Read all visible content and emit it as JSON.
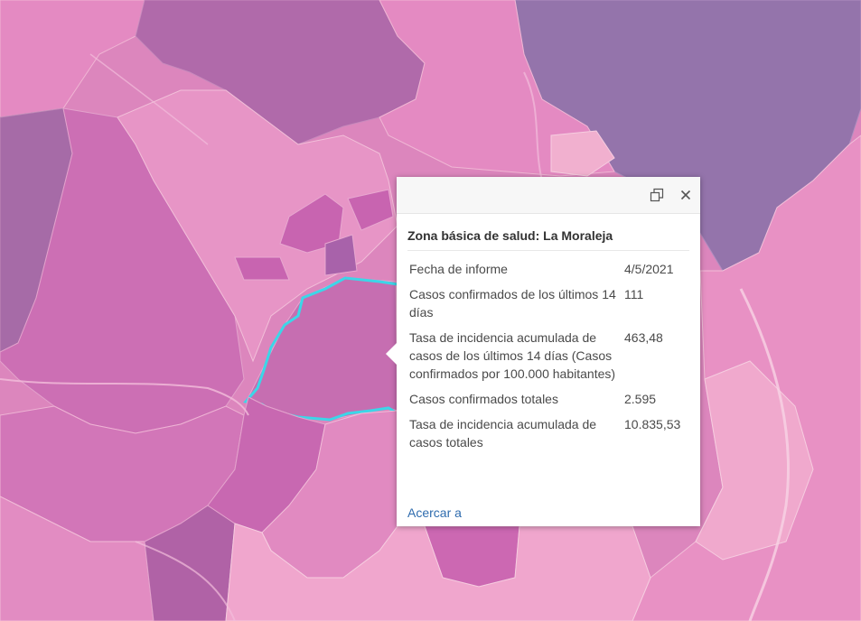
{
  "map": {
    "colors": {
      "very_low": "#f2b3cf",
      "low": "#e892c4",
      "medium": "#d276b8",
      "high": "#b36aaa",
      "very_high": "#9874aa",
      "roads": "#f4c6dd",
      "selection": "#3cd6e8"
    }
  },
  "popup": {
    "dock_icon": "dock-icon",
    "close_icon": "close-icon",
    "title": "Zona básica de salud: La Moraleja",
    "attributes": [
      {
        "label": "Fecha de informe",
        "value": "4/5/2021"
      },
      {
        "label": "Casos confirmados de los últimos 14 días",
        "value": "111"
      },
      {
        "label": "Tasa de incidencia acumulada de casos de los últimos 14 días (Casos confirmados por 100.000 habitantes)",
        "value": "463,48"
      },
      {
        "label": "Casos confirmados totales",
        "value": "2.595"
      },
      {
        "label": "Tasa de incidencia acumulada de casos totales",
        "value": "10.835,53"
      }
    ],
    "zoom_link": "Acercar a"
  }
}
